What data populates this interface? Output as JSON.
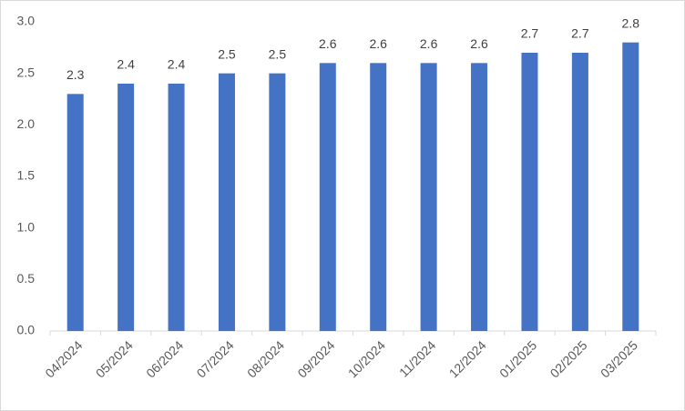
{
  "chart_data": {
    "type": "bar",
    "categories": [
      "04/2024",
      "05/2024",
      "06/2024",
      "07/2024",
      "08/2024",
      "09/2024",
      "10/2024",
      "11/2024",
      "12/2024",
      "01/2025",
      "02/2025",
      "03/2025"
    ],
    "values": [
      2.3,
      2.4,
      2.4,
      2.5,
      2.5,
      2.6,
      2.6,
      2.6,
      2.6,
      2.7,
      2.7,
      2.8
    ],
    "color": "#4472c4",
    "ylim": [
      0,
      3
    ],
    "yticks": [
      {
        "value": 0,
        "label": "0.0"
      },
      {
        "value": 0.5,
        "label": "0.5"
      },
      {
        "value": 1,
        "label": "1.0"
      },
      {
        "value": 1.5,
        "label": "1.5"
      },
      {
        "value": 2,
        "label": "2.0"
      },
      {
        "value": 2.5,
        "label": "2.5"
      },
      {
        "value": 3,
        "label": "3.0"
      }
    ],
    "grid": false
  }
}
